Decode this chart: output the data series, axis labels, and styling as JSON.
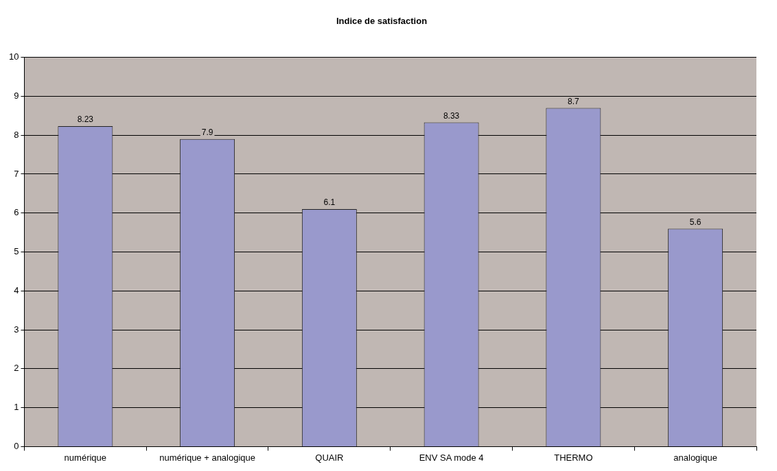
{
  "chart_data": {
    "type": "bar",
    "title": "Indice de satisfaction",
    "categories": [
      "numérique",
      "numérique + analogique",
      "QUAIR",
      "ENV SA mode 4",
      "THERMO",
      "analogique"
    ],
    "values": [
      8.23,
      7.9,
      6.1,
      8.33,
      8.7,
      5.6
    ],
    "color": "#9999cc",
    "ylim": [
      0,
      10
    ],
    "yticks": [
      0,
      1,
      2,
      3,
      4,
      5,
      6,
      7,
      8,
      9,
      10
    ],
    "grid": "y",
    "data_labels": true,
    "legend": false
  }
}
